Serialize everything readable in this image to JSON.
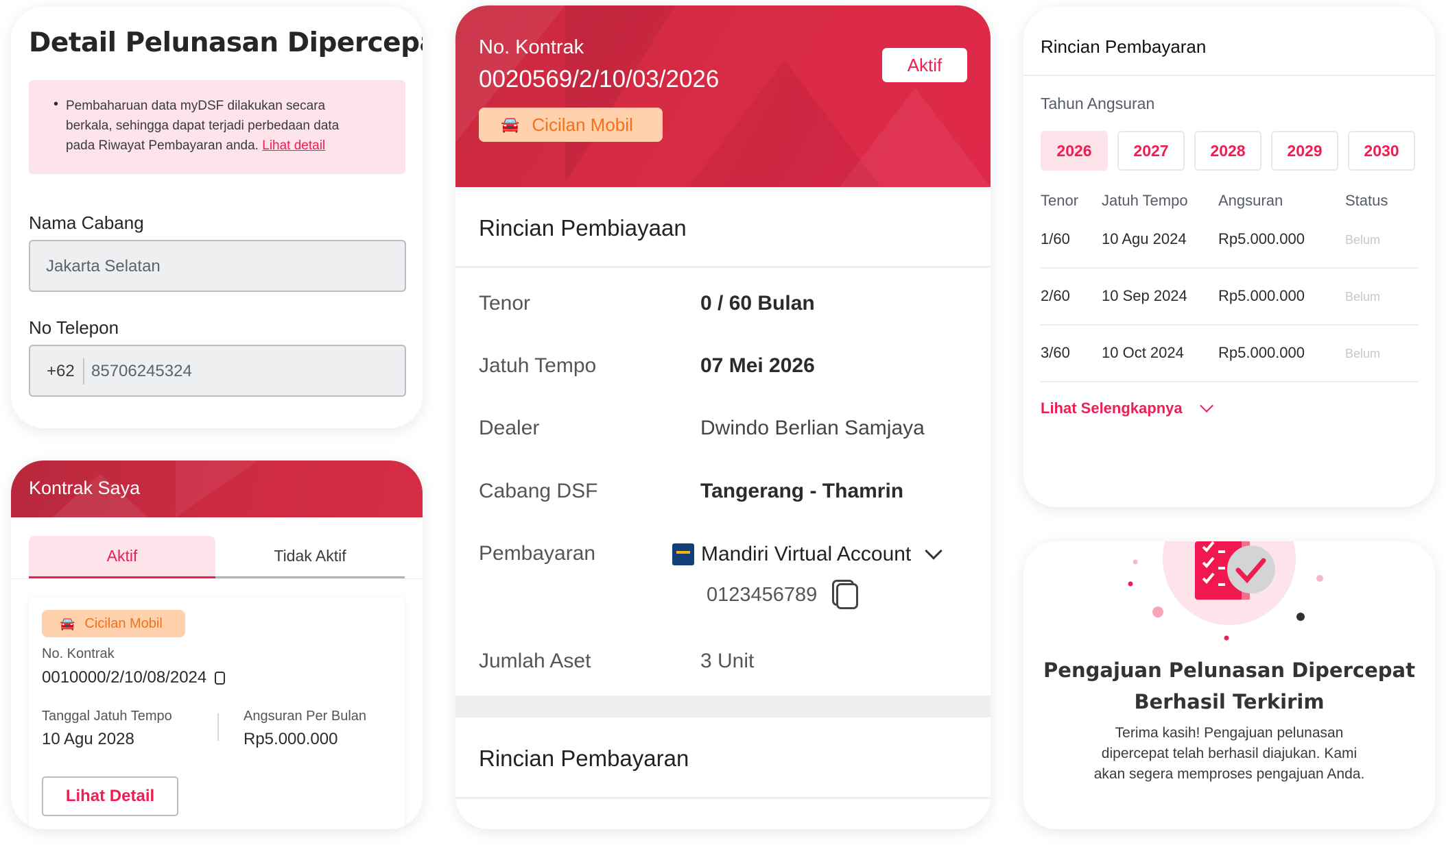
{
  "detail_card": {
    "title": "Detail Pelunasan Dipercepat",
    "notice_text": "Pembaharuan data myDSF dilakukan secara berkala, sehingga dapat terjadi perbedaan data pada Riwayat Pembayaran anda.",
    "notice_line1": "Pembaharuan data myDSF dilakukan secara",
    "notice_line2": "berkala, sehingga dapat terjadi perbedaan data",
    "notice_line3": "pada Riwayat Pembayaran anda.",
    "notice_link": "Lihat detail",
    "branch_label": "Nama Cabang",
    "branch_value": "Jakarta Selatan",
    "phone_label": "No Telepon",
    "phone_prefix": "+62",
    "phone_value": "85706245324"
  },
  "kontrak_saya": {
    "title": "Kontrak Saya",
    "tabs": [
      {
        "label": "Aktif",
        "active": true
      },
      {
        "label": "Tidak Aktif",
        "active": false
      }
    ],
    "contract": {
      "badge": "Cicilan Mobil",
      "no_label": "No. Kontrak",
      "no_value": "0010000/2/10/08/2024",
      "due_label": "Tanggal Jatuh Tempo",
      "due_value": "10 Agu 2028",
      "installment_label": "Angsuran Per Bulan",
      "installment_value": "Rp5.000.000",
      "detail_button": "Lihat Detail"
    }
  },
  "contract_detail": {
    "no_label": "No. Kontrak",
    "no_value": "0020569/2/10/03/2026",
    "status": "Aktif",
    "badge": "Cicilan Mobil",
    "section_title": "Rincian Pembiayaan",
    "rows": [
      {
        "label": "Tenor",
        "value": "0 / 60 Bulan"
      },
      {
        "label": "Jatuh Tempo",
        "value": "07 Mei 2026"
      },
      {
        "label": "Dealer",
        "value": "Dwindo Berlian Samjaya"
      },
      {
        "label": "Cabang DSF",
        "value": "Tangerang - Thamrin"
      },
      {
        "label": "Pembayaran",
        "value": "Mandiri Virtual Account"
      },
      {
        "label": "Jumlah Aset",
        "value": "3 Unit"
      }
    ],
    "va_number": "0123456789",
    "section2_title": "Rincian Pembayaran"
  },
  "payment_card": {
    "title": "Rincian Pembayaran",
    "year_label": "Tahun Angsuran",
    "years": [
      "2026",
      "2027",
      "2028",
      "2029",
      "2030"
    ],
    "selected_year": "2026",
    "columns": [
      "Tenor",
      "Jatuh Tempo",
      "Angsuran",
      "Status"
    ],
    "rows": [
      [
        "1/60",
        "10 Agu 2024",
        "Rp5.000.000",
        "Belum"
      ],
      [
        "2/60",
        "10 Sep 2024",
        "Rp5.000.000",
        "Belum"
      ],
      [
        "3/60",
        "10 Oct 2024",
        "Rp5.000.000",
        "Belum"
      ]
    ],
    "more_link": "Lihat Selengkapnya"
  },
  "success_card": {
    "title_line1": "Pengajuan Pelunasan Dipercepat",
    "title_line2": "Berhasil Terkirim",
    "body_line1": "Terima kasih! Pengajuan pelunasan",
    "body_line2": "dipercepat telah berhasil diajukan. Kami",
    "body_line3": "akan segera memproses pengajuan Anda."
  },
  "colors": {
    "brand_red": "#d62a44",
    "accent_pink": "#ee1d52",
    "badge_orange": "#f2701e",
    "badge_bg": "#ffd2ad"
  }
}
